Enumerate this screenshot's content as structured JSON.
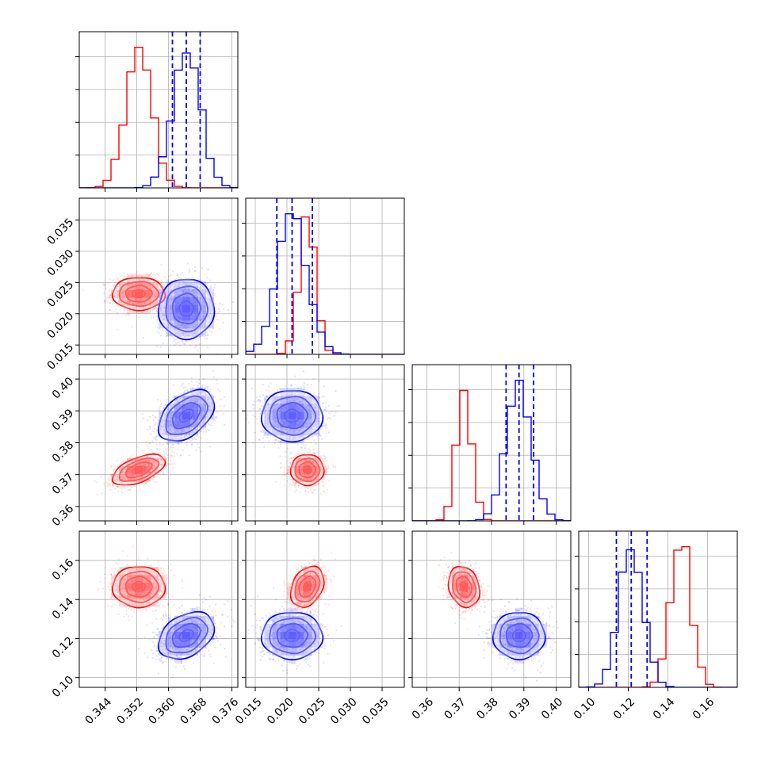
{
  "chart_data": {
    "type": "corner",
    "grid": true,
    "colors": {
      "red_series": "#ff0000",
      "blue_series": "#0000ff"
    },
    "series": [
      {
        "color": "#ff0000",
        "mean": [
          0.3525,
          0.0232,
          0.3715,
          0.1465
        ],
        "std": [
          0.0033,
          0.0013,
          0.0024,
          0.0052
        ],
        "correlations": {
          "0-1": 0.0,
          "0-2": 0.55,
          "0-3": 0.0,
          "1-2": 0.0,
          "1-3": 0.3,
          "2-3": -0.2
        },
        "quantile_lines": false
      },
      {
        "color": "#0000ff",
        "mean": [
          0.3645,
          0.0208,
          0.3885,
          0.1215
        ],
        "std": [
          0.0035,
          0.0024,
          0.004,
          0.006
        ],
        "correlations": {
          "0-1": 0.0,
          "0-2": 0.45,
          "0-3": 0.35,
          "1-2": 0.0,
          "1-3": 0.0,
          "2-3": 0.0
        },
        "quantile_lines": true,
        "quantiles": [
          [
            0.361,
            0.3645,
            0.368
          ],
          [
            0.0184,
            0.0208,
            0.024
          ],
          [
            0.3845,
            0.3885,
            0.393
          ],
          [
            0.114,
            0.1215,
            0.1295
          ]
        ]
      }
    ],
    "axes": [
      {
        "range": [
          0.3375,
          0.3775
        ],
        "ticks": [
          0.344,
          0.352,
          0.36,
          0.368,
          0.376
        ],
        "tick_labels": [
          "0.344",
          "0.352",
          "0.360",
          "0.368",
          "0.376"
        ]
      },
      {
        "range": [
          0.0135,
          0.0385
        ],
        "ticks": [
          0.015,
          0.02,
          0.025,
          0.03,
          0.035
        ],
        "tick_labels": [
          "0.015",
          "0.020",
          "0.025",
          "0.030",
          "0.035"
        ]
      },
      {
        "range": [
          0.3555,
          0.4045
        ],
        "ticks": [
          0.36,
          0.37,
          0.38,
          0.39,
          0.4
        ],
        "tick_labels": [
          "0.36",
          "0.37",
          "0.38",
          "0.39",
          "0.40"
        ]
      },
      {
        "range": [
          0.095,
          0.175
        ],
        "ticks": [
          0.1,
          0.12,
          0.14,
          0.16
        ],
        "tick_labels": [
          "0.10",
          "0.12",
          "0.14",
          "0.16"
        ]
      }
    ],
    "histogram_bins": 20
  }
}
